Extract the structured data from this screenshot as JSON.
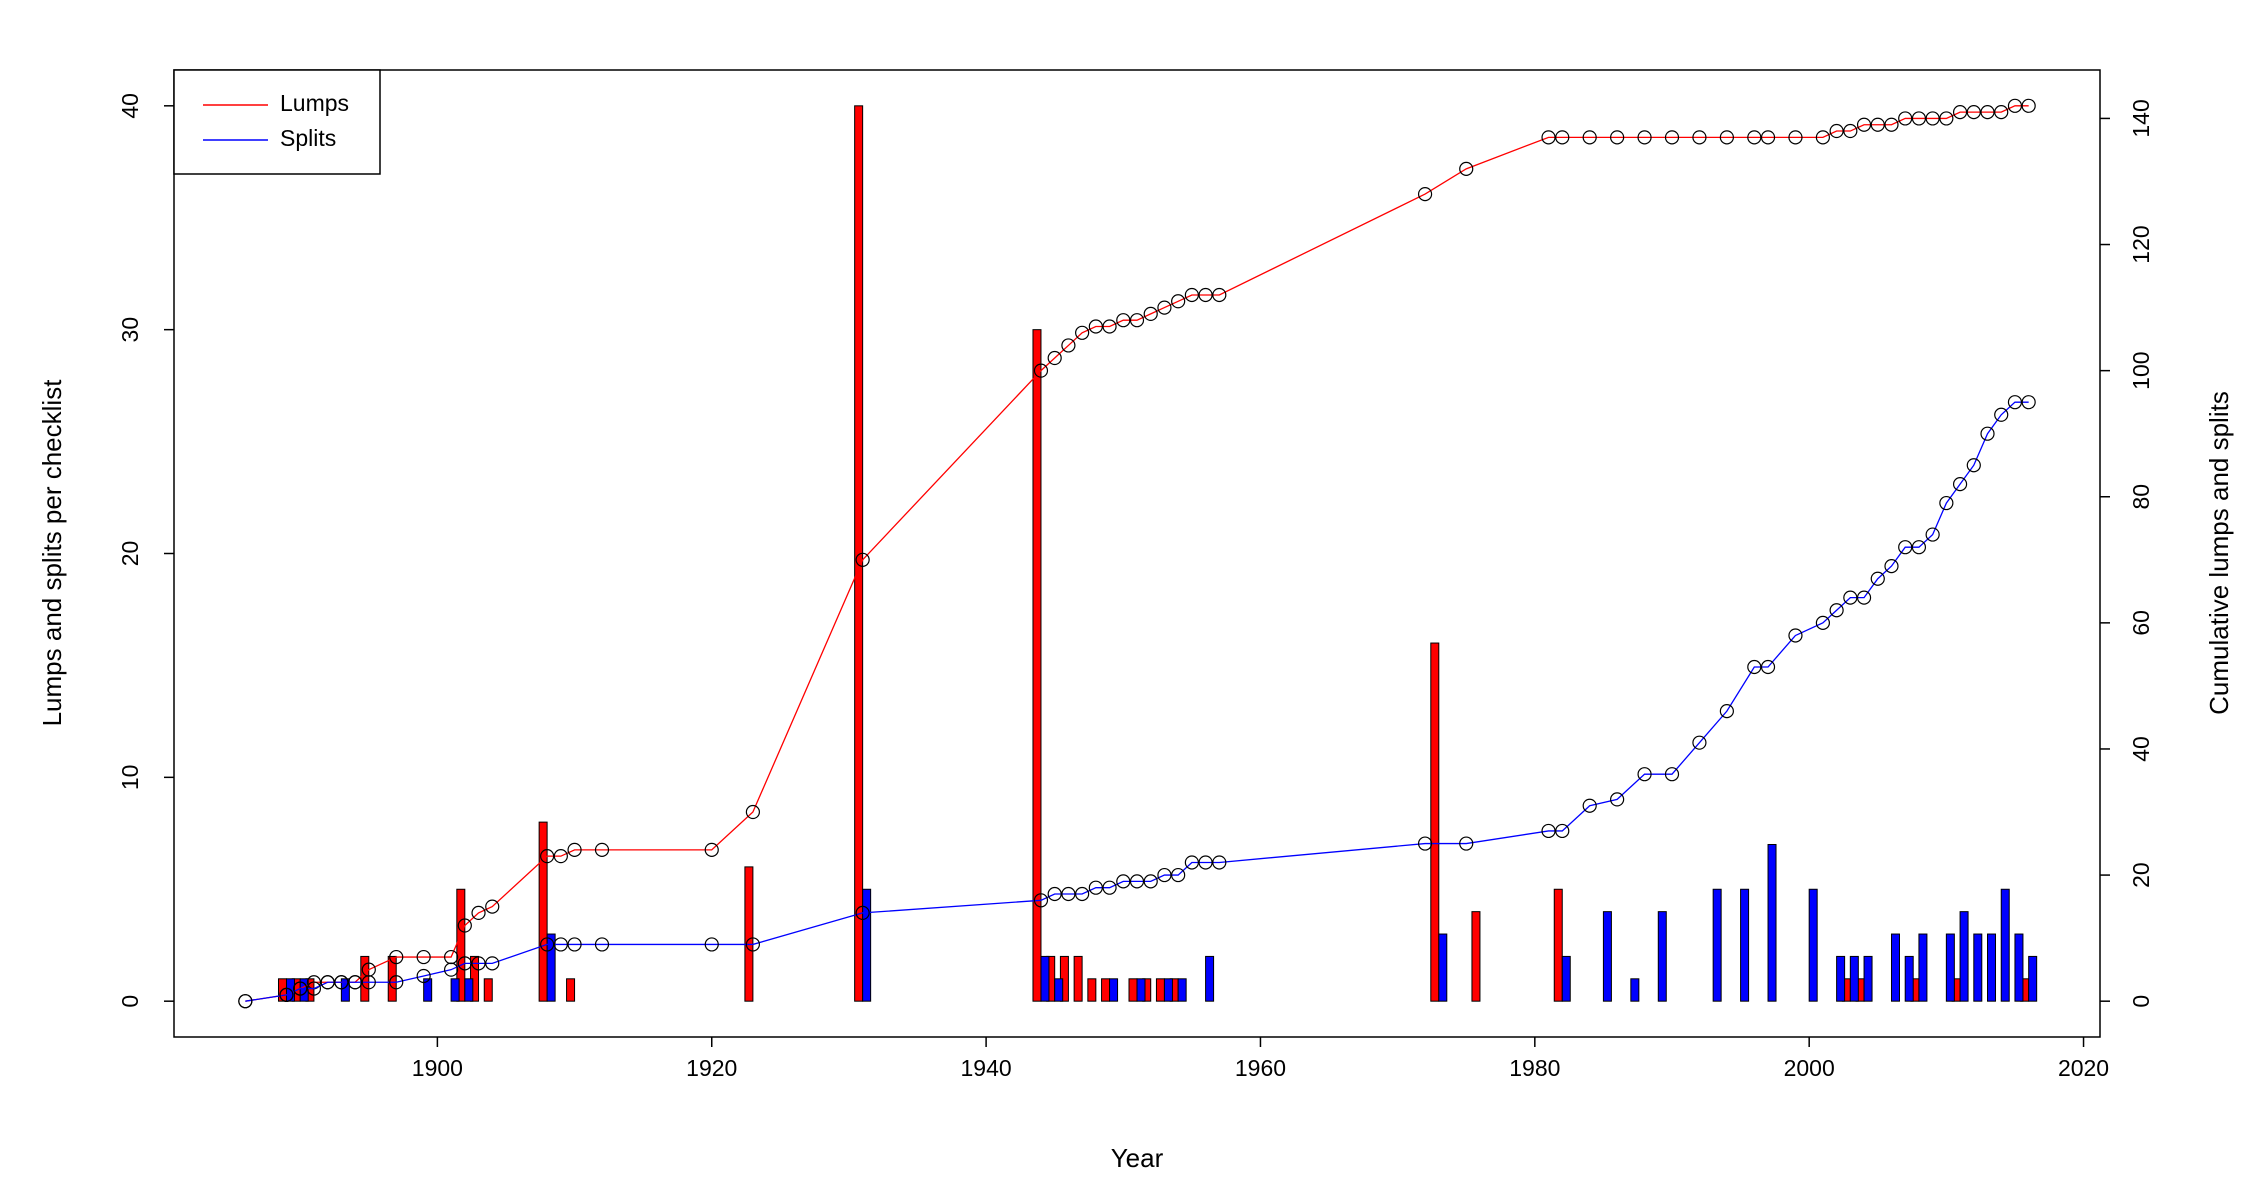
{
  "chart_data": [
    {
      "type": "bar",
      "xlabel": "Year",
      "ylabel": "Lumps and splits per checklist",
      "x": [
        1889,
        1890,
        1891,
        1893,
        1895,
        1897,
        1899,
        1901,
        1902,
        1903,
        1904,
        1908,
        1910,
        1912,
        1920,
        1923,
        1931,
        1944,
        1945,
        1946,
        1947,
        1948,
        1949,
        1951,
        1952,
        1953,
        1954,
        1956,
        1973,
        1976,
        1982,
        1985,
        1987,
        1989,
        1991,
        1993,
        1995,
        1997,
        1999,
        2000,
        2002,
        2003,
        2004,
        2006,
        2007,
        2008,
        2010,
        2011,
        2012,
        2013,
        2014,
        2015,
        2016
      ],
      "series": [
        {
          "color": "#ff0000",
          "values": [
            1,
            1,
            1,
            0,
            2,
            2,
            0,
            0,
            5,
            2,
            1,
            8,
            1,
            0,
            0,
            6,
            40,
            30,
            2,
            2,
            2,
            1,
            1,
            1,
            1,
            1,
            1,
            0,
            16,
            4,
            5,
            0,
            0,
            0,
            0,
            0,
            0,
            0,
            0,
            0,
            0,
            1,
            1,
            0,
            0,
            1,
            0,
            1,
            0,
            0,
            0,
            0,
            1
          ]
        },
        {
          "color": "#0000ff",
          "values": [
            1,
            1,
            0,
            1,
            0,
            0,
            1,
            1,
            1,
            0,
            0,
            3,
            0,
            0,
            0,
            0,
            5,
            2,
            1,
            0,
            0,
            0,
            1,
            1,
            0,
            1,
            1,
            2,
            3,
            0,
            2,
            4,
            1,
            4,
            0,
            5,
            5,
            7,
            0,
            5,
            2,
            2,
            2,
            3,
            2,
            3,
            3,
            4,
            3,
            3,
            5,
            3,
            2
          ]
        }
      ],
      "xlim": [
        1880.8,
        2021.2
      ],
      "xticks": [
        1900,
        1920,
        1940,
        1960,
        1980,
        2000,
        2020
      ],
      "ylim": [
        -1.6,
        41.6
      ],
      "yticks": [
        0,
        10,
        20,
        30,
        40
      ]
    },
    {
      "type": "line",
      "ylabel": "Cumulative lumps and splits",
      "legend": "top-left",
      "marker_color": "#000000",
      "x": [
        1886,
        1889,
        1890,
        1891,
        1892,
        1893,
        1894,
        1895,
        1897,
        1899,
        1901,
        1902,
        1903,
        1904,
        1908,
        1909,
        1910,
        1912,
        1920,
        1923,
        1931,
        1944,
        1945,
        1946,
        1947,
        1948,
        1949,
        1950,
        1951,
        1952,
        1953,
        1954,
        1955,
        1956,
        1957,
        1972,
        1975,
        1981,
        1982,
        1984,
        1986,
        1988,
        1990,
        1992,
        1994,
        1996,
        1997,
        1999,
        2001,
        2002,
        2003,
        2004,
        2005,
        2006,
        2007,
        2008,
        2009,
        2010,
        2011,
        2012,
        2013,
        2014,
        2015,
        2016
      ],
      "series": [
        {
          "name": "Lumps",
          "color": "#ff0000",
          "axis": "y2",
          "values": [
            0,
            1,
            2,
            3,
            3,
            3,
            3,
            5,
            7,
            7,
            7,
            12,
            14,
            15,
            23,
            23,
            24,
            24,
            24,
            30,
            70,
            100,
            102,
            104,
            106,
            107,
            107,
            108,
            108,
            109,
            110,
            111,
            112,
            112,
            112,
            128,
            132,
            137,
            137,
            137,
            137,
            137,
            137,
            137,
            137,
            137,
            137,
            137,
            137,
            138,
            138,
            139,
            139,
            139,
            140,
            140,
            140,
            140,
            141,
            141,
            141,
            141,
            142,
            142
          ]
        },
        {
          "name": "Splits",
          "color": "#0000ff",
          "axis": "y2",
          "values": [
            0,
            1,
            2,
            2,
            3,
            3,
            3,
            3,
            3,
            4,
            5,
            6,
            6,
            6,
            9,
            9,
            9,
            9,
            9,
            9,
            14,
            16,
            17,
            17,
            17,
            18,
            18,
            19,
            19,
            19,
            20,
            20,
            22,
            22,
            22,
            25,
            25,
            27,
            27,
            31,
            32,
            36,
            36,
            41,
            46,
            53,
            53,
            58,
            60,
            62,
            64,
            64,
            67,
            69,
            72,
            72,
            74,
            79,
            82,
            85,
            90,
            93,
            95,
            95
          ]
        }
      ],
      "y2lim": [
        -5.68,
        147.68
      ],
      "y2ticks": [
        0,
        20,
        40,
        60,
        80,
        100,
        120,
        140
      ]
    }
  ]
}
